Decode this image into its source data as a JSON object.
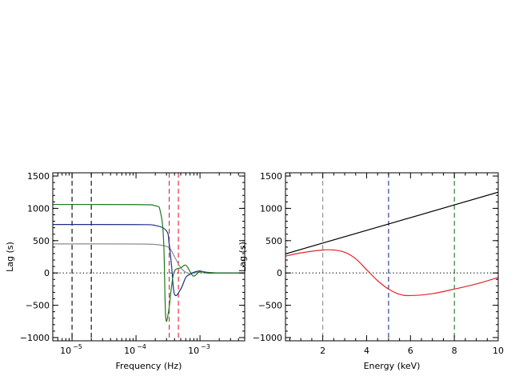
{
  "chart_data": [
    {
      "type": "line",
      "title": "",
      "xlabel": "Frequency (Hz)",
      "ylabel": "Lag (s)",
      "xscale": "log",
      "xlim": [
        5e-06,
        0.005
      ],
      "ylim": [
        -1050,
        1550
      ],
      "grid": false,
      "legend": "none",
      "yticks": [
        -1000,
        -500,
        0,
        500,
        1000,
        1500
      ],
      "yticklabels": [
        "−1000",
        "−500",
        "0",
        "500",
        "1000",
        "1500"
      ],
      "xticks": [
        1e-05,
        0.0001,
        0.001
      ],
      "xticklabels": [
        "10^-5",
        "10^-4",
        "10^-3"
      ],
      "reference_lines": [
        {
          "axis": "x",
          "value": 1e-05,
          "color": "#000000",
          "style": "dashed"
        },
        {
          "axis": "x",
          "value": 2e-05,
          "color": "#000000",
          "style": "dashed"
        },
        {
          "axis": "x",
          "value": 0.00033,
          "color": "#e0252a",
          "style": "dashed"
        },
        {
          "axis": "x",
          "value": 0.00046,
          "color": "#e0252a",
          "style": "dashed"
        },
        {
          "axis": "y",
          "value": 0,
          "color": "#000000",
          "style": "dotted"
        }
      ],
      "series": [
        {
          "color": "#8c8c8c",
          "x": [
            5e-06,
            0.0001,
            0.0002,
            0.0003,
            0.00035,
            0.0004,
            0.0005,
            0.0006,
            0.0007,
            0.0008,
            0.001,
            0.0013,
            0.002,
            0.005
          ],
          "y": [
            450,
            448,
            440,
            410,
            360,
            250,
            80,
            10,
            -10,
            0,
            10,
            0,
            0,
            0
          ]
        },
        {
          "color": "#1f2d8a",
          "x": [
            5e-06,
            0.0001,
            0.0002,
            0.0003,
            0.00033,
            0.00036,
            0.0004,
            0.0005,
            0.0006,
            0.0007,
            0.0008,
            0.001,
            0.0013,
            0.002,
            0.005
          ],
          "y": [
            750,
            748,
            735,
            650,
            450,
            100,
            -330,
            -250,
            -70,
            -20,
            10,
            30,
            0,
            0,
            0
          ]
        },
        {
          "color": "#1c7a1c",
          "x": [
            5e-06,
            0.0001,
            0.0002,
            0.00024,
            0.00027,
            0.00029,
            0.00032,
            0.00036,
            0.0004,
            0.0005,
            0.0006,
            0.0007,
            0.0008,
            0.001,
            0.0013,
            0.002,
            0.005
          ],
          "y": [
            1060,
            1058,
            1040,
            950,
            500,
            -650,
            -620,
            -200,
            30,
            80,
            120,
            20,
            -50,
            20,
            10,
            0,
            0
          ]
        }
      ]
    },
    {
      "type": "line",
      "title": "",
      "xlabel": "Energy (keV)",
      "ylabel": "Lag (s)",
      "xlim": [
        0.3,
        10
      ],
      "ylim": [
        -1050,
        1550
      ],
      "grid": false,
      "legend": "none",
      "yticks": [
        -1000,
        -500,
        0,
        500,
        1000,
        1500
      ],
      "yticklabels": [
        "−1000",
        "−500",
        "0",
        "500",
        "1000",
        "1500"
      ],
      "xticks": [
        2,
        4,
        6,
        8,
        10
      ],
      "xticklabels": [
        "2",
        "4",
        "6",
        "8",
        "10"
      ],
      "reference_lines": [
        {
          "axis": "x",
          "value": 2,
          "color": "#8c8c8c",
          "style": "dashed"
        },
        {
          "axis": "x",
          "value": 5,
          "color": "#1f2d8a",
          "style": "dashed"
        },
        {
          "axis": "x",
          "value": 8,
          "color": "#1c7a1c",
          "style": "dashed"
        },
        {
          "axis": "y",
          "value": 0,
          "color": "#000000",
          "style": "dotted"
        }
      ],
      "series": [
        {
          "color": "#000000",
          "x": [
            0.3,
            10
          ],
          "y": [
            295,
            1250
          ]
        },
        {
          "color": "#e0252a",
          "x": [
            0.3,
            1,
            2,
            2.5,
            3,
            3.5,
            4,
            4.5,
            5,
            5.5,
            6,
            7,
            8,
            9,
            10
          ],
          "y": [
            260,
            310,
            355,
            355,
            320,
            220,
            50,
            -120,
            -250,
            -330,
            -350,
            -320,
            -250,
            -170,
            -70
          ]
        }
      ]
    }
  ]
}
